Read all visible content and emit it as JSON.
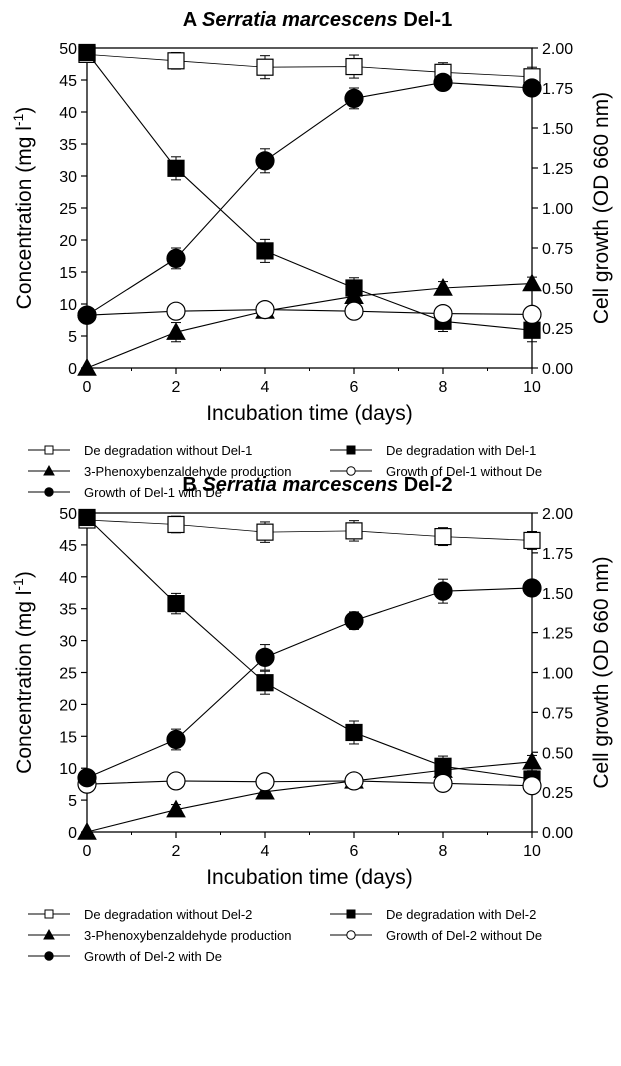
{
  "chart_data": [
    {
      "type": "line",
      "panel_letter": "A",
      "title_italic": "Serratia marcescens",
      "title_suffix": "Del-1",
      "xlabel": "Incubation time (days)",
      "ylabel_left": "Concentration (mg l",
      "ylabel_left_sup": "-1",
      "ylabel_left_close": ")",
      "ylabel_right": "Cell growth (OD 660 nm)",
      "xlim": [
        0,
        10
      ],
      "ylim_left": [
        0,
        50
      ],
      "ylim_right": [
        0,
        2
      ],
      "x_ticks": [
        0,
        2,
        4,
        6,
        8,
        10
      ],
      "y_left_ticks": [
        "0",
        "5",
        "10",
        "15",
        "20",
        "25",
        "30",
        "35",
        "40",
        "45",
        "50"
      ],
      "y_right_ticks": [
        "0.00",
        "0.25",
        "0.50",
        "0.75",
        "1.00",
        "1.25",
        "1.50",
        "1.75",
        "2.00"
      ],
      "grid": false,
      "x": [
        0,
        2,
        4,
        6,
        8,
        10
      ],
      "series": [
        {
          "name": "De degradation without Del-1",
          "marker": "square-open",
          "axis": "left",
          "values": [
            49,
            48,
            47,
            47.1,
            46.2,
            45.5
          ],
          "err": [
            0.8,
            1.3,
            1.8,
            1.8,
            1.5,
            1.5
          ]
        },
        {
          "name": "De degradation with Del-1",
          "marker": "square-filled",
          "axis": "left",
          "values": [
            49.3,
            31.2,
            18.3,
            12.5,
            7.3,
            5.9
          ],
          "err": [
            0.6,
            1.8,
            1.8,
            1.6,
            1.6,
            1.8
          ]
        },
        {
          "name": "3-Phenoxybenzaldehyde production",
          "marker": "triangle-filled",
          "axis": "left",
          "values": [
            0,
            5.6,
            8.9,
            11.2,
            12.5,
            13.2
          ],
          "err": [
            0,
            1.5,
            0.6,
            1.3,
            1.0,
            1.0
          ]
        },
        {
          "name": "Growth of Del-1 without De",
          "marker": "circle-open",
          "axis": "right",
          "values": [
            0.33,
            0.355,
            0.365,
            0.355,
            0.34,
            0.335
          ],
          "err": [
            0,
            0,
            0,
            0,
            0,
            0
          ]
        },
        {
          "name": "Growth of Del-1 with De",
          "marker": "circle-filled",
          "axis": "right",
          "values": [
            0.33,
            0.685,
            1.295,
            1.685,
            1.785,
            1.75
          ],
          "err": [
            0,
            0.065,
            0.075,
            0.065,
            0.04,
            0.04
          ]
        }
      ],
      "legend": {
        "placement": "below",
        "columns": [
          [
            0,
            2,
            4
          ],
          [
            1,
            3
          ]
        ]
      }
    },
    {
      "type": "line",
      "panel_letter": "B",
      "title_italic": "Serratia marcescens",
      "title_suffix": "Del-2",
      "xlabel": "Incubation time (days)",
      "ylabel_left": "Concentration (mg l",
      "ylabel_left_sup": "-1",
      "ylabel_left_close": ")",
      "ylabel_right": "Cell growth (OD 660 nm)",
      "xlim": [
        0,
        10
      ],
      "ylim_left": [
        0,
        50
      ],
      "ylim_right": [
        0,
        2
      ],
      "x_ticks": [
        0,
        2,
        4,
        6,
        8,
        10
      ],
      "y_left_ticks": [
        "0",
        "5",
        "10",
        "15",
        "20",
        "25",
        "30",
        "35",
        "40",
        "45",
        "50"
      ],
      "y_right_ticks": [
        "0.00",
        "0.25",
        "0.50",
        "0.75",
        "1.00",
        "1.25",
        "1.50",
        "1.75",
        "2.00"
      ],
      "grid": false,
      "x": [
        0,
        2,
        4,
        6,
        8,
        10
      ],
      "series": [
        {
          "name": "De degradation without Del-2",
          "marker": "square-open",
          "axis": "left",
          "values": [
            48.9,
            48.2,
            47.0,
            47.2,
            46.3,
            45.7
          ],
          "err": [
            0.8,
            1.3,
            1.6,
            1.6,
            1.4,
            1.4
          ]
        },
        {
          "name": "De degradation with Del-2",
          "marker": "square-filled",
          "axis": "left",
          "values": [
            49.3,
            35.8,
            23.4,
            15.6,
            10.3,
            8.3
          ],
          "err": [
            0.6,
            1.6,
            1.8,
            1.8,
            1.6,
            1.3
          ]
        },
        {
          "name": "3-Phenoxybenzaldehyde production",
          "marker": "triangle-filled",
          "axis": "left",
          "values": [
            0,
            3.5,
            6.3,
            8.0,
            9.7,
            11.0
          ],
          "err": [
            0,
            0.8,
            1.0,
            1.0,
            1.0,
            1.0
          ]
        },
        {
          "name": "Growth of Del-2 without De",
          "marker": "circle-open",
          "axis": "right",
          "values": [
            0.3,
            0.32,
            0.315,
            0.32,
            0.305,
            0.29
          ],
          "err": [
            0,
            0,
            0,
            0,
            0,
            0
          ]
        },
        {
          "name": "Growth of Del-2 with De",
          "marker": "circle-filled",
          "axis": "right",
          "values": [
            0.34,
            0.58,
            1.095,
            1.325,
            1.51,
            1.53
          ],
          "err": [
            0,
            0.065,
            0.08,
            0.055,
            0.075,
            0.05
          ]
        }
      ],
      "legend": {
        "placement": "below",
        "columns": [
          [
            0,
            2,
            4
          ],
          [
            1,
            3
          ]
        ]
      }
    }
  ]
}
